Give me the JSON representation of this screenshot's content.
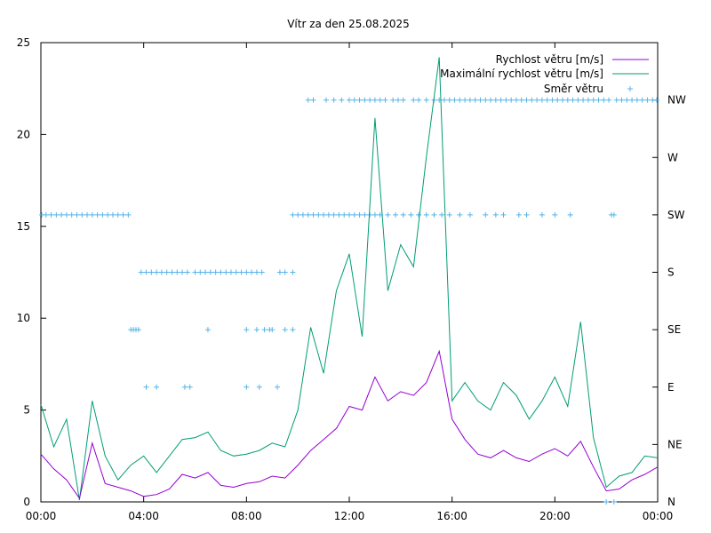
{
  "chart_data": {
    "type": "line",
    "title": "Vítr za den 25.08.2025",
    "x_ticks": [
      "00:00",
      "04:00",
      "08:00",
      "12:00",
      "16:00",
      "20:00",
      "00:00"
    ],
    "x_range_hours": [
      0,
      24
    ],
    "y_left": {
      "range": [
        0,
        25
      ],
      "ticks": [
        "0",
        "5",
        "10",
        "15",
        "20",
        "25"
      ]
    },
    "y_right": {
      "range": [
        0,
        8
      ],
      "ticks": [
        "N",
        "NE",
        "E",
        "SE",
        "S",
        "SW",
        "W",
        "NW"
      ]
    },
    "grid": false,
    "legend": {
      "placement": "top-right",
      "speed": "Rychlost větru [m/s]",
      "gust": "Maximální rychlost větru [m/s]",
      "direction": "Směr větru"
    },
    "colors": {
      "speed": "#9400d3",
      "gust": "#009e73",
      "direction": "#56b4e9"
    },
    "series": [
      {
        "name": "Rychlost větru [m/s]",
        "x": [
          0,
          0.5,
          1,
          1.5,
          2,
          2.5,
          3,
          3.5,
          4,
          4.5,
          5,
          5.5,
          6,
          6.5,
          7,
          7.5,
          8,
          8.5,
          9,
          9.5,
          10,
          10.5,
          11,
          11.5,
          12,
          12.5,
          13,
          13.5,
          14,
          14.5,
          15,
          15.5,
          16,
          16.5,
          17,
          17.5,
          18,
          18.5,
          19,
          19.5,
          20,
          20.5,
          21,
          21.5,
          22,
          22.5,
          23,
          23.5,
          24
        ],
        "values": [
          2.6,
          1.8,
          1.2,
          0.2,
          3.2,
          1.0,
          0.8,
          0.6,
          0.3,
          0.4,
          0.7,
          1.5,
          1.3,
          1.6,
          0.9,
          0.8,
          1.0,
          1.1,
          1.4,
          1.3,
          2.0,
          2.8,
          3.4,
          4.0,
          5.2,
          5.0,
          6.8,
          5.5,
          6.0,
          5.8,
          6.5,
          8.2,
          4.5,
          3.4,
          2.6,
          2.4,
          2.8,
          2.4,
          2.2,
          2.6,
          2.9,
          2.5,
          3.3,
          1.9,
          0.6,
          0.7,
          1.2,
          1.5,
          1.9
        ]
      },
      {
        "name": "Maximální rychlost větru [m/s]",
        "x": [
          0,
          0.5,
          1,
          1.5,
          2,
          2.5,
          3,
          3.5,
          4,
          4.5,
          5,
          5.5,
          6,
          6.5,
          7,
          7.5,
          8,
          8.5,
          9,
          9.5,
          10,
          10.5,
          11,
          11.5,
          12,
          12.5,
          13,
          13.5,
          14,
          14.5,
          15,
          15.5,
          16,
          16.5,
          17,
          17.5,
          18,
          18.5,
          19,
          19.5,
          20,
          20.5,
          21,
          21.5,
          22,
          22.5,
          23,
          23.5,
          24
        ],
        "values": [
          5.3,
          3.0,
          4.5,
          0.1,
          5.5,
          2.5,
          1.2,
          2.0,
          2.5,
          1.6,
          2.5,
          3.4,
          3.5,
          3.8,
          2.8,
          2.5,
          2.6,
          2.8,
          3.2,
          3.0,
          5.0,
          9.5,
          7.0,
          11.5,
          13.5,
          9.0,
          20.9,
          11.5,
          14.0,
          12.8,
          18.8,
          24.2,
          5.5,
          6.5,
          5.5,
          5.0,
          6.5,
          5.8,
          4.5,
          5.5,
          6.8,
          5.2,
          9.8,
          3.5,
          0.8,
          1.4,
          1.6,
          2.5,
          2.4
        ]
      },
      {
        "name": "Směr větru",
        "points": [
          [
            0.0,
            5
          ],
          [
            0.2,
            5
          ],
          [
            0.4,
            5
          ],
          [
            0.6,
            5
          ],
          [
            0.8,
            5
          ],
          [
            1.0,
            5
          ],
          [
            1.2,
            5
          ],
          [
            1.4,
            5
          ],
          [
            1.6,
            5
          ],
          [
            1.8,
            5
          ],
          [
            2.0,
            5
          ],
          [
            2.2,
            5
          ],
          [
            2.4,
            5
          ],
          [
            2.6,
            5
          ],
          [
            2.8,
            5
          ],
          [
            3.0,
            5
          ],
          [
            3.2,
            5
          ],
          [
            3.4,
            5
          ],
          [
            3.5,
            3
          ],
          [
            3.6,
            3
          ],
          [
            3.7,
            3
          ],
          [
            3.8,
            3
          ],
          [
            3.9,
            4
          ],
          [
            4.1,
            4
          ],
          [
            4.3,
            4
          ],
          [
            4.5,
            4
          ],
          [
            4.7,
            4
          ],
          [
            4.9,
            4
          ],
          [
            5.1,
            4
          ],
          [
            5.3,
            4
          ],
          [
            5.5,
            4
          ],
          [
            5.7,
            4
          ],
          [
            4.1,
            2
          ],
          [
            4.5,
            2
          ],
          [
            5.6,
            2
          ],
          [
            5.8,
            2
          ],
          [
            6.0,
            4
          ],
          [
            6.2,
            4
          ],
          [
            6.4,
            4
          ],
          [
            6.6,
            4
          ],
          [
            6.8,
            4
          ],
          [
            7.0,
            4
          ],
          [
            7.2,
            4
          ],
          [
            7.4,
            4
          ],
          [
            7.6,
            4
          ],
          [
            7.8,
            4
          ],
          [
            8.0,
            4
          ],
          [
            8.2,
            4
          ],
          [
            8.4,
            4
          ],
          [
            8.6,
            4
          ],
          [
            6.5,
            3
          ],
          [
            8.0,
            3
          ],
          [
            8.4,
            3
          ],
          [
            8.7,
            3
          ],
          [
            8.9,
            3
          ],
          [
            9.0,
            3
          ],
          [
            9.5,
            3
          ],
          [
            9.8,
            3
          ],
          [
            8.0,
            2
          ],
          [
            8.5,
            2
          ],
          [
            9.2,
            2
          ],
          [
            9.3,
            4
          ],
          [
            9.5,
            4
          ],
          [
            9.8,
            4
          ],
          [
            9.8,
            5
          ],
          [
            10.0,
            5
          ],
          [
            10.2,
            5
          ],
          [
            10.4,
            5
          ],
          [
            10.6,
            5
          ],
          [
            10.8,
            5
          ],
          [
            11.0,
            5
          ],
          [
            11.2,
            5
          ],
          [
            11.4,
            5
          ],
          [
            11.6,
            5
          ],
          [
            11.8,
            5
          ],
          [
            12.0,
            5
          ],
          [
            12.2,
            5
          ],
          [
            12.4,
            5
          ],
          [
            12.6,
            5
          ],
          [
            12.8,
            5
          ],
          [
            13.0,
            5
          ],
          [
            13.2,
            5
          ],
          [
            13.5,
            5
          ],
          [
            13.8,
            5
          ],
          [
            14.1,
            5
          ],
          [
            14.4,
            5
          ],
          [
            14.7,
            5
          ],
          [
            15.0,
            5
          ],
          [
            15.3,
            5
          ],
          [
            15.6,
            5
          ],
          [
            15.9,
            5
          ],
          [
            16.3,
            5
          ],
          [
            16.7,
            5
          ],
          [
            17.3,
            5
          ],
          [
            17.7,
            5
          ],
          [
            18.0,
            5
          ],
          [
            18.6,
            5
          ],
          [
            18.9,
            5
          ],
          [
            19.5,
            5
          ],
          [
            20.0,
            5
          ],
          [
            20.6,
            5
          ],
          [
            22.2,
            5
          ],
          [
            22.3,
            5
          ],
          [
            10.4,
            7
          ],
          [
            10.6,
            7
          ],
          [
            11.1,
            7
          ],
          [
            11.4,
            7
          ],
          [
            11.7,
            7
          ],
          [
            12.0,
            7
          ],
          [
            12.2,
            7
          ],
          [
            12.4,
            7
          ],
          [
            12.6,
            7
          ],
          [
            12.8,
            7
          ],
          [
            13.0,
            7
          ],
          [
            13.2,
            7
          ],
          [
            13.4,
            7
          ],
          [
            13.7,
            7
          ],
          [
            13.9,
            7
          ],
          [
            14.1,
            7
          ],
          [
            14.5,
            7
          ],
          [
            14.7,
            7
          ],
          [
            15.0,
            7
          ],
          [
            15.3,
            7
          ],
          [
            15.5,
            7
          ],
          [
            15.7,
            7
          ],
          [
            15.9,
            7
          ],
          [
            16.1,
            7
          ],
          [
            16.3,
            7
          ],
          [
            16.5,
            7
          ],
          [
            16.7,
            7
          ],
          [
            16.9,
            7
          ],
          [
            17.1,
            7
          ],
          [
            17.3,
            7
          ],
          [
            17.5,
            7
          ],
          [
            17.7,
            7
          ],
          [
            17.9,
            7
          ],
          [
            18.1,
            7
          ],
          [
            18.3,
            7
          ],
          [
            18.5,
            7
          ],
          [
            18.7,
            7
          ],
          [
            18.9,
            7
          ],
          [
            19.1,
            7
          ],
          [
            19.3,
            7
          ],
          [
            19.5,
            7
          ],
          [
            19.7,
            7
          ],
          [
            19.9,
            7
          ],
          [
            20.1,
            7
          ],
          [
            20.3,
            7
          ],
          [
            20.5,
            7
          ],
          [
            20.7,
            7
          ],
          [
            20.9,
            7
          ],
          [
            21.1,
            7
          ],
          [
            21.3,
            7
          ],
          [
            21.5,
            7
          ],
          [
            21.7,
            7
          ],
          [
            21.9,
            7
          ],
          [
            22.1,
            7
          ],
          [
            22.4,
            7
          ],
          [
            22.6,
            7
          ],
          [
            22.8,
            7
          ],
          [
            23.0,
            7
          ],
          [
            23.2,
            7
          ],
          [
            23.4,
            7
          ],
          [
            23.6,
            7
          ],
          [
            23.8,
            7
          ],
          [
            24.0,
            7
          ],
          [
            22.0,
            0
          ],
          [
            22.3,
            0
          ]
        ]
      }
    ]
  }
}
